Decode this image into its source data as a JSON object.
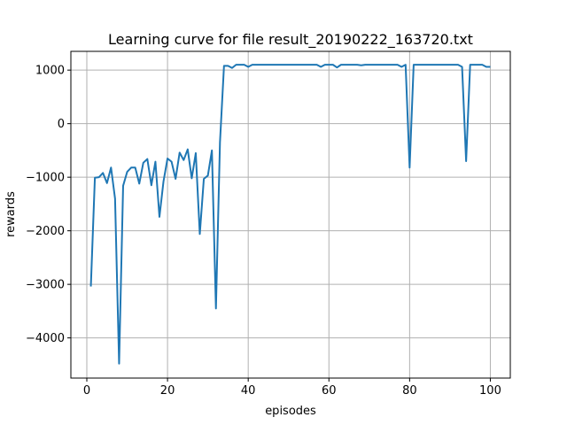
{
  "chart_data": {
    "type": "line",
    "title": "Learning curve for file result_20190222_163720.txt",
    "xlabel": "episodes",
    "ylabel": "rewards",
    "xlim": [
      -3.95,
      104.95
    ],
    "ylim": [
      -4750,
      1350
    ],
    "xticks": [
      0,
      20,
      40,
      60,
      80,
      100
    ],
    "yticks": [
      -4000,
      -3000,
      -2000,
      -1000,
      0,
      1000
    ],
    "xtick_labels": [
      "0",
      "20",
      "40",
      "60",
      "80",
      "100"
    ],
    "ytick_labels": [
      "−4000",
      "−3000",
      "−2000",
      "−1000",
      "0",
      "1000"
    ],
    "grid": true,
    "series": [
      {
        "color": "#1f77b4",
        "x": [
          1,
          2,
          3,
          4,
          5,
          6,
          7,
          8,
          9,
          10,
          11,
          12,
          13,
          14,
          15,
          16,
          17,
          18,
          19,
          20,
          21,
          22,
          23,
          24,
          25,
          26,
          27,
          28,
          29,
          30,
          31,
          32,
          33,
          34,
          35,
          36,
          37,
          38,
          39,
          40,
          41,
          42,
          43,
          44,
          45,
          46,
          47,
          48,
          49,
          50,
          51,
          52,
          53,
          54,
          55,
          56,
          57,
          58,
          59,
          60,
          61,
          62,
          63,
          64,
          65,
          66,
          67,
          68,
          69,
          70,
          71,
          72,
          73,
          74,
          75,
          76,
          77,
          78,
          79,
          80,
          81,
          82,
          83,
          84,
          85,
          86,
          87,
          88,
          89,
          90,
          91,
          92,
          93,
          94,
          95,
          96,
          97,
          98,
          99,
          100
        ],
        "y": [
          -3040,
          -1010,
          -1000,
          -920,
          -1110,
          -820,
          -1400,
          -4480,
          -1160,
          -900,
          -820,
          -820,
          -1120,
          -730,
          -660,
          -1150,
          -710,
          -1740,
          -1080,
          -650,
          -710,
          -1030,
          -540,
          -680,
          -480,
          -1020,
          -550,
          -2060,
          -1030,
          -970,
          -500,
          -3450,
          -350,
          1080,
          1080,
          1040,
          1100,
          1100,
          1100,
          1060,
          1100,
          1100,
          1100,
          1100,
          1100,
          1100,
          1100,
          1100,
          1100,
          1100,
          1100,
          1100,
          1100,
          1100,
          1100,
          1100,
          1100,
          1060,
          1100,
          1100,
          1100,
          1050,
          1100,
          1100,
          1100,
          1100,
          1100,
          1090,
          1100,
          1100,
          1100,
          1100,
          1100,
          1100,
          1100,
          1100,
          1100,
          1060,
          1100,
          -820,
          1100,
          1100,
          1100,
          1100,
          1100,
          1100,
          1100,
          1100,
          1100,
          1100,
          1100,
          1100,
          1060,
          -700,
          1100,
          1100,
          1100,
          1100,
          1060,
          1060
        ]
      }
    ]
  }
}
